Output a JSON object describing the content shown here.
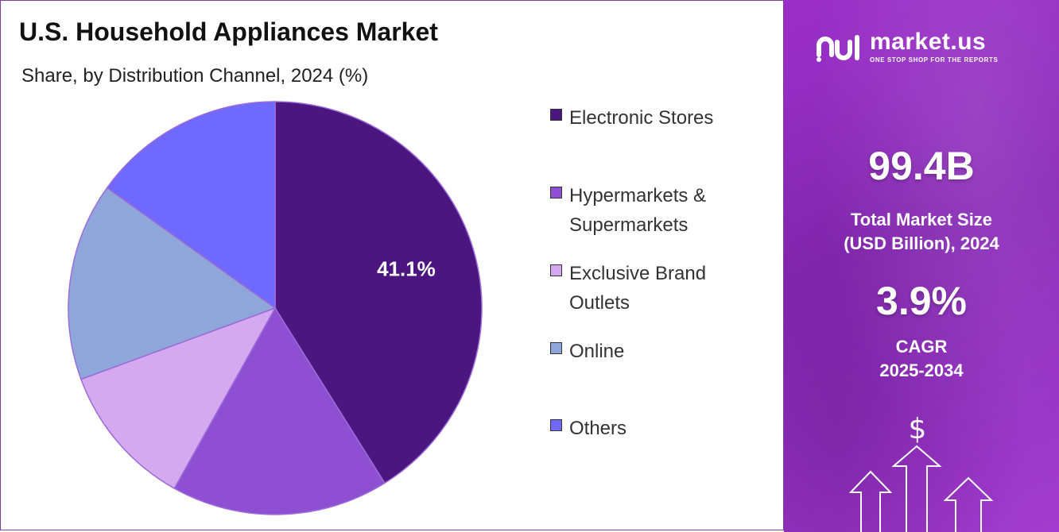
{
  "header": {
    "title": "U.S. Household Appliances Market",
    "subtitle": "Share, by Distribution Channel, 2024 (%)"
  },
  "chart_data": {
    "type": "pie",
    "title": "U.S. Household Appliances Market",
    "subtitle": "Share, by Distribution Channel, 2024 (%)",
    "slices": [
      {
        "label": "Electronic Stores",
        "value": 41.1,
        "color": "#4c1681",
        "show_label": true
      },
      {
        "label": "Hypermarkets & Supermarkets",
        "value": 17.0,
        "color": "#8e4fd3",
        "show_label": false
      },
      {
        "label": "Exclusive Brand Outlets",
        "value": 11.3,
        "color": "#d5a9ef",
        "show_label": false
      },
      {
        "label": "Online",
        "value": 15.5,
        "color": "#8fa6db",
        "show_label": false
      },
      {
        "label": "Others",
        "value": 15.1,
        "color": "#7069fd",
        "show_label": false
      }
    ],
    "legend_position": "right",
    "start_angle": "12 o'clock, clockwise"
  },
  "legend": {
    "items": [
      {
        "lines": [
          "Electronic Stores"
        ],
        "color": "#4c1681"
      },
      {
        "lines": [
          "Hypermarkets &",
          "Supermarkets"
        ],
        "color": "#8e4fd3"
      },
      {
        "lines": [
          "Exclusive Brand",
          "Outlets"
        ],
        "color": "#d5a9ef"
      },
      {
        "lines": [
          "Online"
        ],
        "color": "#8fa6db"
      },
      {
        "lines": [
          "Others"
        ],
        "color": "#7069fd"
      }
    ]
  },
  "sidebar": {
    "brand_name": "market.us",
    "brand_tagline": "ONE STOP SHOP FOR THE REPORTS",
    "market_size_value": "99.4B",
    "market_size_label_1": "Total Market Size",
    "market_size_label_2": "(USD Billion), 2024",
    "cagr_value": "3.9%",
    "cagr_label_1": "CAGR",
    "cagr_label_2": "2025-2034",
    "currency_symbol": "$"
  }
}
